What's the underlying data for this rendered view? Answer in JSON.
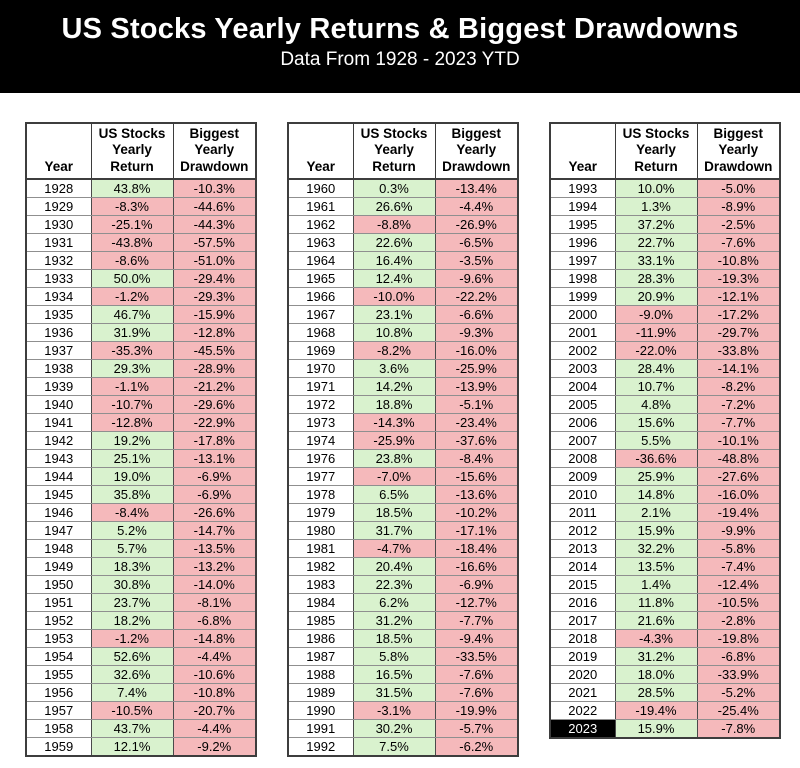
{
  "header": {
    "title": "US Stocks Yearly Returns & Biggest Drawdowns",
    "subtitle": "Data From 1928 - 2023 YTD"
  },
  "columns": [
    "Year",
    "US Stocks\nYearly\nReturn",
    "Biggest\nYearly\nDrawdown"
  ],
  "colors": {
    "banner_bg": "#000000",
    "banner_text": "#ffffff",
    "positive_bg": "#d9f2ce",
    "negative_bg": "#f5b9bb",
    "highlight_year_bg": "#000000",
    "highlight_year_text": "#ffffff"
  },
  "highlight_year": "2023",
  "tables": [
    {
      "name": "returns-1928-1959",
      "rows": [
        [
          "1928",
          "43.8%",
          "-10.3%"
        ],
        [
          "1929",
          "-8.3%",
          "-44.6%"
        ],
        [
          "1930",
          "-25.1%",
          "-44.3%"
        ],
        [
          "1931",
          "-43.8%",
          "-57.5%"
        ],
        [
          "1932",
          "-8.6%",
          "-51.0%"
        ],
        [
          "1933",
          "50.0%",
          "-29.4%"
        ],
        [
          "1934",
          "-1.2%",
          "-29.3%"
        ],
        [
          "1935",
          "46.7%",
          "-15.9%"
        ],
        [
          "1936",
          "31.9%",
          "-12.8%"
        ],
        [
          "1937",
          "-35.3%",
          "-45.5%"
        ],
        [
          "1938",
          "29.3%",
          "-28.9%"
        ],
        [
          "1939",
          "-1.1%",
          "-21.2%"
        ],
        [
          "1940",
          "-10.7%",
          "-29.6%"
        ],
        [
          "1941",
          "-12.8%",
          "-22.9%"
        ],
        [
          "1942",
          "19.2%",
          "-17.8%"
        ],
        [
          "1943",
          "25.1%",
          "-13.1%"
        ],
        [
          "1944",
          "19.0%",
          "-6.9%"
        ],
        [
          "1945",
          "35.8%",
          "-6.9%"
        ],
        [
          "1946",
          "-8.4%",
          "-26.6%"
        ],
        [
          "1947",
          "5.2%",
          "-14.7%"
        ],
        [
          "1948",
          "5.7%",
          "-13.5%"
        ],
        [
          "1949",
          "18.3%",
          "-13.2%"
        ],
        [
          "1950",
          "30.8%",
          "-14.0%"
        ],
        [
          "1951",
          "23.7%",
          "-8.1%"
        ],
        [
          "1952",
          "18.2%",
          "-6.8%"
        ],
        [
          "1953",
          "-1.2%",
          "-14.8%"
        ],
        [
          "1954",
          "52.6%",
          "-4.4%"
        ],
        [
          "1955",
          "32.6%",
          "-10.6%"
        ],
        [
          "1956",
          "7.4%",
          "-10.8%"
        ],
        [
          "1957",
          "-10.5%",
          "-20.7%"
        ],
        [
          "1958",
          "43.7%",
          "-4.4%"
        ],
        [
          "1959",
          "12.1%",
          "-9.2%"
        ]
      ]
    },
    {
      "name": "returns-1960-1992",
      "rows": [
        [
          "1960",
          "0.3%",
          "-13.4%"
        ],
        [
          "1961",
          "26.6%",
          "-4.4%"
        ],
        [
          "1962",
          "-8.8%",
          "-26.9%"
        ],
        [
          "1963",
          "22.6%",
          "-6.5%"
        ],
        [
          "1964",
          "16.4%",
          "-3.5%"
        ],
        [
          "1965",
          "12.4%",
          "-9.6%"
        ],
        [
          "1966",
          "-10.0%",
          "-22.2%"
        ],
        [
          "1967",
          "23.1%",
          "-6.6%"
        ],
        [
          "1968",
          "10.8%",
          "-9.3%"
        ],
        [
          "1969",
          "-8.2%",
          "-16.0%"
        ],
        [
          "1970",
          "3.6%",
          "-25.9%"
        ],
        [
          "1971",
          "14.2%",
          "-13.9%"
        ],
        [
          "1972",
          "18.8%",
          "-5.1%"
        ],
        [
          "1973",
          "-14.3%",
          "-23.4%"
        ],
        [
          "1974",
          "-25.9%",
          "-37.6%"
        ],
        [
          "1976",
          "23.8%",
          "-8.4%"
        ],
        [
          "1977",
          "-7.0%",
          "-15.6%"
        ],
        [
          "1978",
          "6.5%",
          "-13.6%"
        ],
        [
          "1979",
          "18.5%",
          "-10.2%"
        ],
        [
          "1980",
          "31.7%",
          "-17.1%"
        ],
        [
          "1981",
          "-4.7%",
          "-18.4%"
        ],
        [
          "1982",
          "20.4%",
          "-16.6%"
        ],
        [
          "1983",
          "22.3%",
          "-6.9%"
        ],
        [
          "1984",
          "6.2%",
          "-12.7%"
        ],
        [
          "1985",
          "31.2%",
          "-7.7%"
        ],
        [
          "1986",
          "18.5%",
          "-9.4%"
        ],
        [
          "1987",
          "5.8%",
          "-33.5%"
        ],
        [
          "1988",
          "16.5%",
          "-7.6%"
        ],
        [
          "1989",
          "31.5%",
          "-7.6%"
        ],
        [
          "1990",
          "-3.1%",
          "-19.9%"
        ],
        [
          "1991",
          "30.2%",
          "-5.7%"
        ],
        [
          "1992",
          "7.5%",
          "-6.2%"
        ]
      ]
    },
    {
      "name": "returns-1993-2023",
      "rows": [
        [
          "1993",
          "10.0%",
          "-5.0%"
        ],
        [
          "1994",
          "1.3%",
          "-8.9%"
        ],
        [
          "1995",
          "37.2%",
          "-2.5%"
        ],
        [
          "1996",
          "22.7%",
          "-7.6%"
        ],
        [
          "1997",
          "33.1%",
          "-10.8%"
        ],
        [
          "1998",
          "28.3%",
          "-19.3%"
        ],
        [
          "1999",
          "20.9%",
          "-12.1%"
        ],
        [
          "2000",
          "-9.0%",
          "-17.2%"
        ],
        [
          "2001",
          "-11.9%",
          "-29.7%"
        ],
        [
          "2002",
          "-22.0%",
          "-33.8%"
        ],
        [
          "2003",
          "28.4%",
          "-14.1%"
        ],
        [
          "2004",
          "10.7%",
          "-8.2%"
        ],
        [
          "2005",
          "4.8%",
          "-7.2%"
        ],
        [
          "2006",
          "15.6%",
          "-7.7%"
        ],
        [
          "2007",
          "5.5%",
          "-10.1%"
        ],
        [
          "2008",
          "-36.6%",
          "-48.8%"
        ],
        [
          "2009",
          "25.9%",
          "-27.6%"
        ],
        [
          "2010",
          "14.8%",
          "-16.0%"
        ],
        [
          "2011",
          "2.1%",
          "-19.4%"
        ],
        [
          "2012",
          "15.9%",
          "-9.9%"
        ],
        [
          "2013",
          "32.2%",
          "-5.8%"
        ],
        [
          "2014",
          "13.5%",
          "-7.4%"
        ],
        [
          "2015",
          "1.4%",
          "-12.4%"
        ],
        [
          "2016",
          "11.8%",
          "-10.5%"
        ],
        [
          "2017",
          "21.6%",
          "-2.8%"
        ],
        [
          "2018",
          "-4.3%",
          "-19.8%"
        ],
        [
          "2019",
          "31.2%",
          "-6.8%"
        ],
        [
          "2020",
          "18.0%",
          "-33.9%"
        ],
        [
          "2021",
          "28.5%",
          "-5.2%"
        ],
        [
          "2022",
          "-19.4%",
          "-25.4%"
        ],
        [
          "2023",
          "15.9%",
          "-7.8%"
        ]
      ]
    }
  ]
}
